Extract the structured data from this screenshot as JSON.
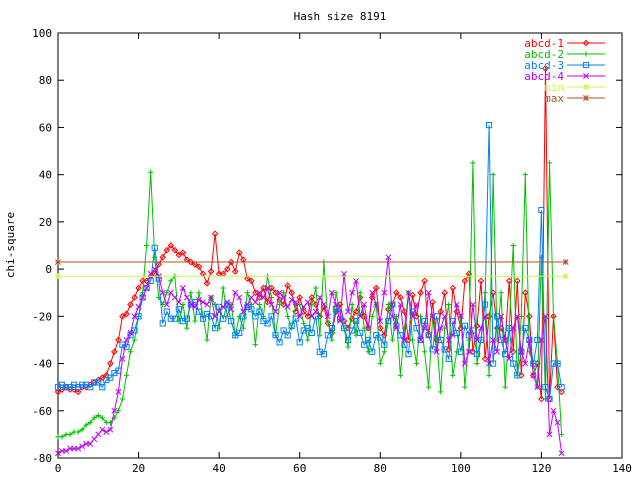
{
  "chart_data": {
    "type": "line",
    "title": "Hash size 8191",
    "xlabel": "",
    "ylabel": "chi-square",
    "xlim": [
      0,
      140
    ],
    "ylim": [
      -80,
      100
    ],
    "x_ticks": [
      0,
      20,
      40,
      60,
      80,
      100,
      120,
      140
    ],
    "y_ticks": [
      -80,
      -60,
      -40,
      -20,
      0,
      20,
      40,
      60,
      80,
      100
    ],
    "grid": false,
    "legend_position": "top-right",
    "series": [
      {
        "name": "abcd-1",
        "color": "#ff0000",
        "marker": "diamond",
        "x": [
          0,
          1,
          2,
          3,
          4,
          5,
          6,
          7,
          8,
          9,
          10,
          11,
          12,
          13,
          14,
          15,
          16,
          17,
          18,
          19,
          20,
          21,
          22,
          23,
          24,
          25,
          26,
          27,
          28,
          29,
          30,
          31,
          32,
          33,
          34,
          35,
          36,
          37,
          38,
          39,
          40,
          41,
          42,
          43,
          44,
          45,
          46,
          47,
          48,
          49,
          50,
          51,
          52,
          53,
          54,
          55,
          56,
          57,
          58,
          59,
          60,
          61,
          62,
          63,
          64,
          65,
          66,
          67,
          68,
          69,
          70,
          71,
          72,
          73,
          74,
          75,
          76,
          77,
          78,
          79,
          80,
          81,
          82,
          83,
          84,
          85,
          86,
          87,
          88,
          89,
          90,
          91,
          92,
          93,
          94,
          95,
          96,
          97,
          98,
          99,
          100,
          101,
          102,
          103,
          104,
          105,
          106,
          107,
          108,
          109,
          110,
          111,
          112,
          113,
          114,
          115,
          116,
          117,
          118,
          119,
          120,
          121,
          122,
          123,
          124,
          125
        ],
        "values": [
          -52,
          -51,
          -50,
          -51,
          -51,
          -52,
          -50,
          -50,
          -49,
          -48,
          -47,
          -46,
          -45,
          -40,
          -35,
          -30,
          -20,
          -19,
          -15,
          -12,
          -8,
          -5,
          -5,
          -3,
          -2,
          2,
          5,
          8,
          10,
          8,
          6,
          7,
          4,
          3,
          2,
          1,
          -2,
          -6,
          -1,
          15,
          -2,
          -2,
          0,
          3,
          -1,
          7,
          4,
          -4,
          -5,
          -10,
          -12,
          -8,
          -14,
          -8,
          -10,
          -13,
          -15,
          -7,
          -10,
          -18,
          -12,
          -18,
          -20,
          -12,
          -15,
          -20,
          -16,
          -23,
          -27,
          -18,
          -15,
          -22,
          -25,
          -21,
          -18,
          -12,
          -20,
          -25,
          -12,
          -8,
          -25,
          -28,
          -17,
          -15,
          -10,
          -12,
          -18,
          -30,
          -11,
          -20,
          -10,
          -5,
          -28,
          -14,
          -30,
          -18,
          -10,
          -34,
          -8,
          -18,
          -25,
          -5,
          -2,
          -35,
          -24,
          -5,
          -38,
          -20,
          -10,
          -25,
          -25,
          -30,
          -5,
          -35,
          -5,
          -45,
          -10,
          -20,
          -45,
          -40,
          -55,
          85,
          -55,
          -20,
          -50,
          -52
        ]
      },
      {
        "name": "abcd-2",
        "color": "#00c000",
        "marker": "plus",
        "x": [
          0,
          1,
          2,
          3,
          4,
          5,
          6,
          7,
          8,
          9,
          10,
          11,
          12,
          13,
          14,
          15,
          16,
          17,
          18,
          19,
          20,
          21,
          22,
          23,
          24,
          25,
          26,
          27,
          28,
          29,
          30,
          31,
          32,
          33,
          34,
          35,
          36,
          37,
          38,
          39,
          40,
          41,
          42,
          43,
          44,
          45,
          46,
          47,
          48,
          49,
          50,
          51,
          52,
          53,
          54,
          55,
          56,
          57,
          58,
          59,
          60,
          61,
          62,
          63,
          64,
          65,
          66,
          67,
          68,
          69,
          70,
          71,
          72,
          73,
          74,
          75,
          76,
          77,
          78,
          79,
          80,
          81,
          82,
          83,
          84,
          85,
          86,
          87,
          88,
          89,
          90,
          91,
          92,
          93,
          94,
          95,
          96,
          97,
          98,
          99,
          100,
          101,
          102,
          103,
          104,
          105,
          106,
          107,
          108,
          109,
          110,
          111,
          112,
          113,
          114,
          115,
          116,
          117,
          118,
          119,
          120,
          121,
          122,
          123,
          124,
          125
        ],
        "values": [
          -71,
          -71,
          -70,
          -70,
          -69,
          -69,
          -68,
          -66,
          -65,
          -63,
          -62,
          -63,
          -65,
          -65,
          -63,
          -60,
          -55,
          -45,
          -35,
          -30,
          -20,
          -10,
          10,
          41,
          5,
          -12,
          -15,
          -10,
          -5,
          -3,
          -22,
          -15,
          -25,
          -10,
          -22,
          -10,
          -20,
          -30,
          -12,
          -15,
          -25,
          -8,
          -20,
          -15,
          -28,
          -20,
          -25,
          -10,
          -15,
          -32,
          -15,
          -20,
          -3,
          -12,
          -28,
          -15,
          -10,
          -20,
          -25,
          -15,
          -15,
          -23,
          -30,
          -15,
          -8,
          -28,
          3,
          -22,
          -30,
          -10,
          -18,
          -25,
          -33,
          -15,
          -28,
          -10,
          -25,
          -35,
          -20,
          -15,
          -40,
          -35,
          -15,
          -30,
          -20,
          -45,
          -25,
          -10,
          -30,
          -40,
          -20,
          -35,
          -50,
          -20,
          -30,
          -52,
          -25,
          -15,
          -45,
          -35,
          -20,
          -50,
          -30,
          45,
          -40,
          -30,
          -10,
          -45,
          40,
          -30,
          -10,
          -50,
          -25,
          10,
          -45,
          -20,
          40,
          -35,
          -40,
          -50,
          5,
          -55,
          45,
          -20,
          -40,
          -70
        ]
      },
      {
        "name": "abcd-3",
        "color": "#0080ff",
        "marker": "square",
        "x": [
          0,
          1,
          2,
          3,
          4,
          5,
          6,
          7,
          8,
          9,
          10,
          11,
          12,
          13,
          14,
          15,
          16,
          17,
          18,
          19,
          20,
          21,
          22,
          23,
          24,
          25,
          26,
          27,
          28,
          29,
          30,
          31,
          32,
          33,
          34,
          35,
          36,
          37,
          38,
          39,
          40,
          41,
          42,
          43,
          44,
          45,
          46,
          47,
          48,
          49,
          50,
          51,
          52,
          53,
          54,
          55,
          56,
          57,
          58,
          59,
          60,
          61,
          62,
          63,
          64,
          65,
          66,
          67,
          68,
          69,
          70,
          71,
          72,
          73,
          74,
          75,
          76,
          77,
          78,
          79,
          80,
          81,
          82,
          83,
          84,
          85,
          86,
          87,
          88,
          89,
          90,
          91,
          92,
          93,
          94,
          95,
          96,
          97,
          98,
          99,
          100,
          101,
          102,
          103,
          104,
          105,
          106,
          107,
          108,
          109,
          110,
          111,
          112,
          113,
          114,
          115,
          116,
          117,
          118,
          119,
          120,
          121,
          122,
          123,
          124,
          125
        ],
        "values": [
          -50,
          -49,
          -50,
          -50,
          -49,
          -50,
          -49,
          -49,
          -50,
          -48,
          -48,
          -50,
          -47,
          -46,
          -44,
          -43,
          -32,
          -33,
          -28,
          -26,
          -20,
          -12,
          -8,
          -5,
          9,
          -4,
          -23,
          -18,
          -21,
          -21,
          -17,
          -22,
          -21,
          -15,
          -14,
          -18,
          -21,
          -19,
          -20,
          -25,
          -16,
          -21,
          -15,
          -22,
          -28,
          -27,
          -20,
          -16,
          -17,
          -20,
          -18,
          -22,
          -23,
          -20,
          -28,
          -31,
          -26,
          -28,
          -24,
          -21,
          -31,
          -26,
          -25,
          -27,
          -20,
          -35,
          -36,
          -28,
          -25,
          -17,
          -21,
          -25,
          -30,
          -26,
          -22,
          -27,
          -32,
          -30,
          -35,
          -28,
          -29,
          -32,
          -22,
          -15,
          -24,
          -28,
          -32,
          -36,
          -18,
          -25,
          -30,
          -22,
          -28,
          -34,
          -20,
          -30,
          -34,
          -38,
          -22,
          -27,
          -35,
          -24,
          -28,
          -26,
          -36,
          -30,
          -15,
          61,
          -40,
          -20,
          -30,
          -36,
          -25,
          -40,
          -45,
          -35,
          -25,
          -30,
          -40,
          -30,
          25,
          -50,
          -55,
          -40,
          -40,
          -50
        ]
      },
      {
        "name": "abcd-4",
        "color": "#c000ff",
        "marker": "cross",
        "x": [
          0,
          1,
          2,
          3,
          4,
          5,
          6,
          7,
          8,
          9,
          10,
          11,
          12,
          13,
          14,
          15,
          16,
          17,
          18,
          19,
          20,
          21,
          22,
          23,
          24,
          25,
          26,
          27,
          28,
          29,
          30,
          31,
          32,
          33,
          34,
          35,
          36,
          37,
          38,
          39,
          40,
          41,
          42,
          43,
          44,
          45,
          46,
          47,
          48,
          49,
          50,
          51,
          52,
          53,
          54,
          55,
          56,
          57,
          58,
          59,
          60,
          61,
          62,
          63,
          64,
          65,
          66,
          67,
          68,
          69,
          70,
          71,
          72,
          73,
          74,
          75,
          76,
          77,
          78,
          79,
          80,
          81,
          82,
          83,
          84,
          85,
          86,
          87,
          88,
          89,
          90,
          91,
          92,
          93,
          94,
          95,
          96,
          97,
          98,
          99,
          100,
          101,
          102,
          103,
          104,
          105,
          106,
          107,
          108,
          109,
          110,
          111,
          112,
          113,
          114,
          115,
          116,
          117,
          118,
          119,
          120,
          121,
          122,
          123,
          124,
          125
        ],
        "values": [
          -78,
          -77,
          -77,
          -76,
          -76,
          -76,
          -75,
          -74,
          -74,
          -72,
          -70,
          -68,
          -69,
          -68,
          -60,
          -52,
          -38,
          -30,
          -27,
          -20,
          -16,
          -12,
          -8,
          -2,
          0,
          -3,
          -10,
          -15,
          -10,
          -12,
          -14,
          -8,
          -12,
          -15,
          -16,
          -13,
          -14,
          -15,
          -12,
          -20,
          -18,
          -16,
          -14,
          -17,
          -10,
          -12,
          -18,
          -15,
          -12,
          -14,
          -10,
          -12,
          -8,
          -15,
          -18,
          -10,
          -12,
          -16,
          -13,
          -14,
          -20,
          -16,
          -14,
          -20,
          -18,
          -12,
          -15,
          -20,
          -10,
          -15,
          -22,
          -2,
          -18,
          -10,
          -5,
          -20,
          -15,
          -25,
          -10,
          -15,
          -22,
          -10,
          5,
          -20,
          -25,
          -15,
          -30,
          -10,
          -20,
          -15,
          -30,
          -25,
          -10,
          -20,
          -35,
          -25,
          -20,
          -30,
          -28,
          -15,
          -20,
          -40,
          -35,
          -15,
          -30,
          -25,
          -20,
          -40,
          -30,
          -35,
          -20,
          -30,
          -38,
          -25,
          -20,
          -35,
          -40,
          -30,
          -45,
          -50,
          -30,
          -20,
          -70,
          -60,
          -65,
          -78
        ]
      },
      {
        "name": "min",
        "color": "#c0ff40",
        "marker": "star",
        "x": [
          0,
          126
        ],
        "values": [
          -3,
          -3
        ]
      },
      {
        "name": "max",
        "color": "#b05020",
        "marker": "asterisk",
        "x": [
          0,
          126
        ],
        "values": [
          3,
          3
        ]
      }
    ]
  }
}
